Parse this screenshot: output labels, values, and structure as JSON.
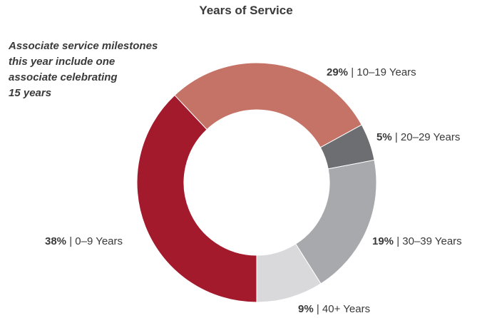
{
  "chart_data": {
    "type": "pie",
    "title": "Years of Service",
    "annotation_lines": [
      "Associate service milestones",
      "this year include one",
      "associate celebrating",
      "15 years"
    ],
    "slices": [
      {
        "label": "0–9 Years",
        "value": 38,
        "pct_text": "38%",
        "color": "#a31a2d"
      },
      {
        "label": "10–19 Years",
        "value": 29,
        "pct_text": "29%",
        "color": "#c57366"
      },
      {
        "label": "20–29 Years",
        "value": 5,
        "pct_text": "5%",
        "color": "#6d6e71"
      },
      {
        "label": "30–39 Years",
        "value": 19,
        "pct_text": "19%",
        "color": "#a7a9ac"
      },
      {
        "label": "40+ Years",
        "value": 9,
        "pct_text": "9%",
        "color": "#d9d9db"
      }
    ],
    "separator": " | "
  }
}
